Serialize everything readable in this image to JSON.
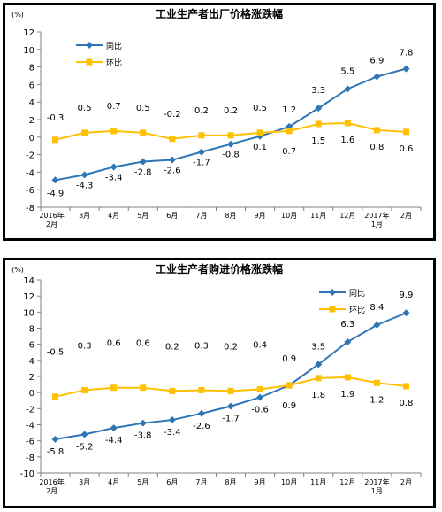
{
  "chart_data": [
    {
      "type": "line",
      "title": "工业生产者出厂价格涨跌幅",
      "ylabel": "(%)",
      "ylim": [
        -8,
        12
      ],
      "yticks": [
        -8,
        -6,
        -4,
        -2,
        0,
        2,
        4,
        6,
        8,
        10,
        12
      ],
      "categories": [
        "2016年\n2月",
        "3月",
        "4月",
        "5月",
        "6月",
        "7月",
        "8月",
        "9月",
        "10月",
        "11月",
        "12月",
        "2017年\n1月",
        "2月"
      ],
      "legend_position": "top-left",
      "grid": false,
      "series": [
        {
          "name": "同比",
          "color": "#2e75b6",
          "marker": "diamond",
          "labels_position": "mixed",
          "values": [
            -4.9,
            -4.3,
            -3.4,
            -2.8,
            -2.6,
            -1.7,
            -0.8,
            0.1,
            1.2,
            3.3,
            5.5,
            6.9,
            7.8
          ]
        },
        {
          "name": "环比",
          "color": "#ffc000",
          "marker": "square",
          "labels_position": "mixed",
          "values": [
            -0.3,
            0.5,
            0.7,
            0.5,
            -0.2,
            0.2,
            0.2,
            0.5,
            0.7,
            1.5,
            1.6,
            0.8,
            0.6
          ]
        }
      ]
    },
    {
      "type": "line",
      "title": "工业生产者购进价格涨跌幅",
      "ylabel": "(%)",
      "ylim": [
        -10,
        14
      ],
      "yticks": [
        -10,
        -8,
        -6,
        -4,
        -2,
        0,
        2,
        4,
        6,
        8,
        10,
        12,
        14
      ],
      "categories": [
        "2016年\n2月",
        "3月",
        "4月",
        "5月",
        "6月",
        "7月",
        "8月",
        "9月",
        "10月",
        "11月",
        "12月",
        "2017年\n1月",
        "2月"
      ],
      "legend_position": "top-right",
      "grid": false,
      "series": [
        {
          "name": "同比",
          "color": "#2e75b6",
          "marker": "diamond",
          "values": [
            -5.8,
            -5.2,
            -4.4,
            -3.8,
            -3.4,
            -2.6,
            -1.7,
            -0.6,
            0.9,
            3.5,
            6.3,
            8.4,
            9.9
          ]
        },
        {
          "name": "环比",
          "color": "#ffc000",
          "marker": "square",
          "values": [
            -0.5,
            0.3,
            0.6,
            0.6,
            0.2,
            0.3,
            0.2,
            0.4,
            0.9,
            1.8,
            1.9,
            1.2,
            0.8
          ]
        }
      ]
    }
  ]
}
